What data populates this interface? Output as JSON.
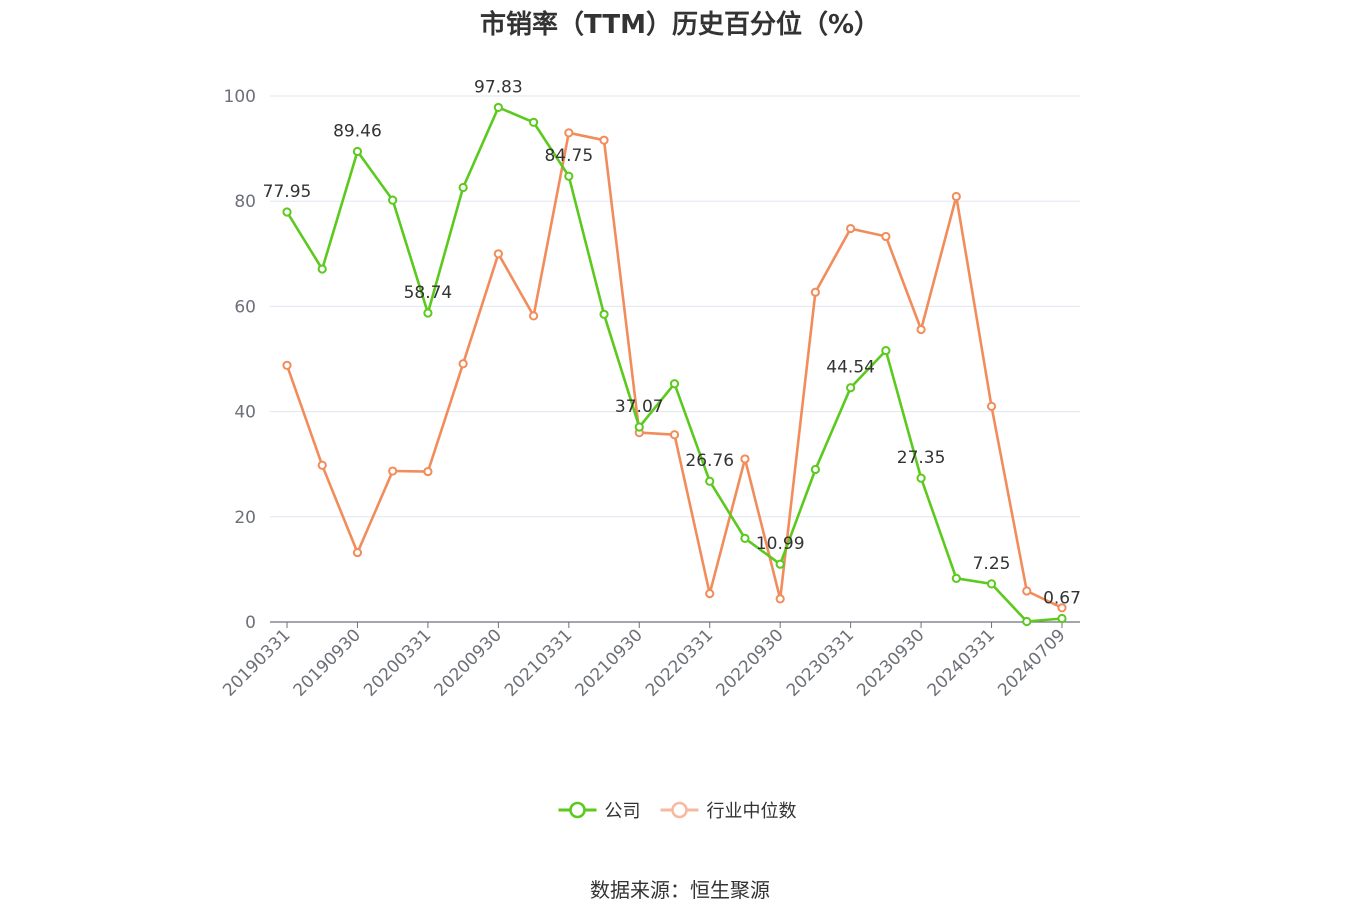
{
  "chart_data": {
    "type": "line",
    "title": "市销率（TTM）历史百分位（%）",
    "ylim": [
      0,
      100
    ],
    "yticks": [
      0,
      20,
      40,
      60,
      80,
      100
    ],
    "grid": true,
    "legend_position": "bottom-center",
    "x": [
      "20190331",
      "20190630",
      "20190930",
      "20191231",
      "20200331",
      "20200630",
      "20200930",
      "20201231",
      "20210331",
      "20210630",
      "20210930",
      "20211231",
      "20220331",
      "20220630",
      "20220930",
      "20221231",
      "20230331",
      "20230630",
      "20230930",
      "20231231",
      "20240331",
      "20240630",
      "20240709"
    ],
    "x_tick_labels": [
      "20190331",
      "20190930",
      "20200331",
      "20200930",
      "20210331",
      "20210930",
      "20220331",
      "20220930",
      "20230331",
      "20230930",
      "20240331",
      "20240709"
    ],
    "series": [
      {
        "name": "公司",
        "color": "#5cc91e",
        "values": [
          77.95,
          67.1,
          89.46,
          80.2,
          58.74,
          82.6,
          97.83,
          95.0,
          84.75,
          58.5,
          37.07,
          45.3,
          26.76,
          15.9,
          10.99,
          29.0,
          44.54,
          51.6,
          27.35,
          8.3,
          7.25,
          0.1,
          0.67
        ],
        "labels": {
          "0": "77.95",
          "2": "89.46",
          "4": "58.74",
          "6": "97.83",
          "8": "84.75",
          "10": "37.07",
          "12": "26.76",
          "14": "10.99",
          "16": "44.54",
          "18": "27.35",
          "20": "7.25",
          "22": "0.67"
        }
      },
      {
        "name": "行业中位数",
        "color": "#f28c5b",
        "values": [
          48.8,
          29.8,
          13.2,
          28.7,
          28.6,
          49.1,
          70.0,
          58.2,
          93.0,
          91.6,
          36.0,
          35.6,
          5.4,
          31.0,
          4.4,
          62.7,
          74.8,
          73.3,
          55.6,
          80.9,
          41.0,
          5.9,
          2.7
        ]
      }
    ]
  },
  "source_text": "数据来源：恒生聚源"
}
